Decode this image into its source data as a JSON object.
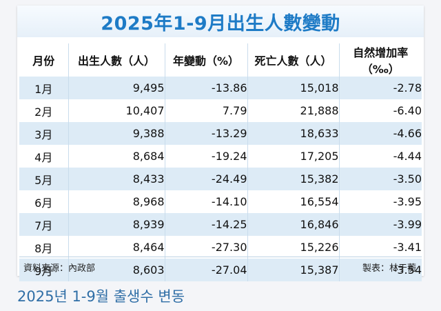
{
  "title": "2025年1-9月出生人數變動",
  "headers": [
    "月份",
    "出生人數（人）",
    "年變動（%）",
    "死亡人數（人）",
    "自然增加率（‰）"
  ],
  "rows": [
    {
      "month": "1月",
      "births": "9,495",
      "change": "-13.86",
      "deaths": "15,018",
      "rate": "-2.78"
    },
    {
      "month": "2月",
      "births": "10,407",
      "change": "7.79",
      "deaths": "21,888",
      "rate": "-6.40"
    },
    {
      "month": "3月",
      "births": "9,388",
      "change": "-13.29",
      "deaths": "18,633",
      "rate": "-4.66"
    },
    {
      "month": "4月",
      "births": "8,684",
      "change": "-19.24",
      "deaths": "17,205",
      "rate": "-4.44"
    },
    {
      "month": "5月",
      "births": "8,433",
      "change": "-24.49",
      "deaths": "15,382",
      "rate": "-3.50"
    },
    {
      "month": "6月",
      "births": "8,968",
      "change": "-14.10",
      "deaths": "16,554",
      "rate": "-3.95"
    },
    {
      "month": "7月",
      "births": "8,939",
      "change": "-14.25",
      "deaths": "16,846",
      "rate": "-3.99"
    },
    {
      "month": "8月",
      "births": "8,464",
      "change": "-27.30",
      "deaths": "15,226",
      "rate": "-3.41"
    },
    {
      "month": "9月",
      "births": "8,603",
      "change": "-27.04",
      "deaths": "15,387",
      "rate": "-3.54"
    }
  ],
  "source": "資料來源：內政部",
  "credit": "製表：林于蘅",
  "caption": "2025년 1-9월 출생수 변동",
  "colors": {
    "title": "#1e7bc6",
    "stripe": "#ddebf6",
    "caption": "#2f6ea6"
  }
}
